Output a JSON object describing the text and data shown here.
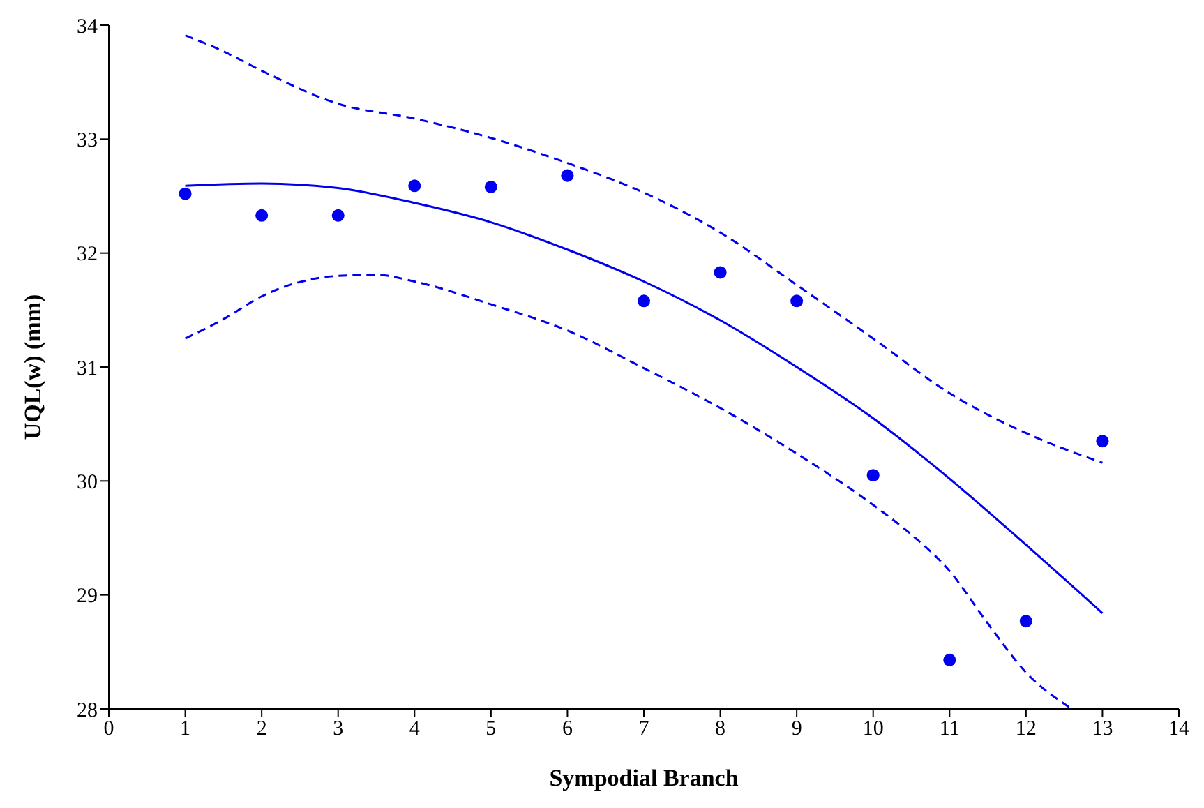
{
  "chart_data": {
    "type": "scatter",
    "xlabel": "Sympodial Branch",
    "ylabel": "UQL(w) (mm)",
    "xlim": [
      0,
      14
    ],
    "xticks": [
      0,
      1,
      2,
      3,
      4,
      5,
      6,
      7,
      8,
      9,
      10,
      11,
      12,
      13,
      14
    ],
    "ylim": [
      28,
      34
    ],
    "yticks": [
      28,
      29,
      30,
      31,
      32,
      33,
      34
    ],
    "grid": false,
    "legend": false,
    "series": [
      {
        "color": "#0000ee",
        "marker": "circle",
        "x": [
          1,
          2,
          3,
          4,
          5,
          6,
          7,
          8,
          9,
          10,
          11,
          12,
          13
        ],
        "values": [
          32.52,
          32.33,
          32.33,
          32.59,
          32.58,
          32.68,
          31.58,
          31.83,
          31.58,
          30.05,
          28.43,
          28.77,
          30.35
        ]
      },
      {
        "type": "line",
        "color": "#0000ee",
        "line_style": "solid",
        "x": [
          1,
          2,
          3,
          4,
          5,
          6,
          7,
          8,
          9,
          10,
          11,
          12,
          13
        ],
        "values": [
          32.59,
          32.61,
          32.57,
          32.44,
          32.27,
          32.03,
          31.75,
          31.41,
          31.0,
          30.55,
          30.02,
          29.44,
          28.84
        ]
      },
      {
        "type": "line",
        "color": "#0000ee",
        "line_style": "dashed",
        "x": [
          1,
          1.5,
          2,
          3,
          4,
          5,
          6,
          7,
          8,
          9,
          10,
          11,
          12,
          13
        ],
        "values": [
          33.91,
          33.77,
          33.6,
          33.31,
          33.18,
          33.01,
          32.79,
          32.53,
          32.18,
          31.72,
          31.25,
          30.77,
          30.42,
          30.16
        ]
      },
      {
        "type": "line",
        "color": "#0000ee",
        "line_style": "dashed",
        "x": [
          1,
          1.5,
          2,
          3,
          3.5,
          4,
          5,
          6,
          7,
          8,
          9,
          10,
          10.5,
          11,
          11.5,
          12,
          12.6
        ],
        "values": [
          31.25,
          31.42,
          31.62,
          31.8,
          31.81,
          31.75,
          31.55,
          31.32,
          30.99,
          30.64,
          30.24,
          29.79,
          29.53,
          29.21,
          28.75,
          28.32,
          28.0
        ]
      }
    ]
  }
}
